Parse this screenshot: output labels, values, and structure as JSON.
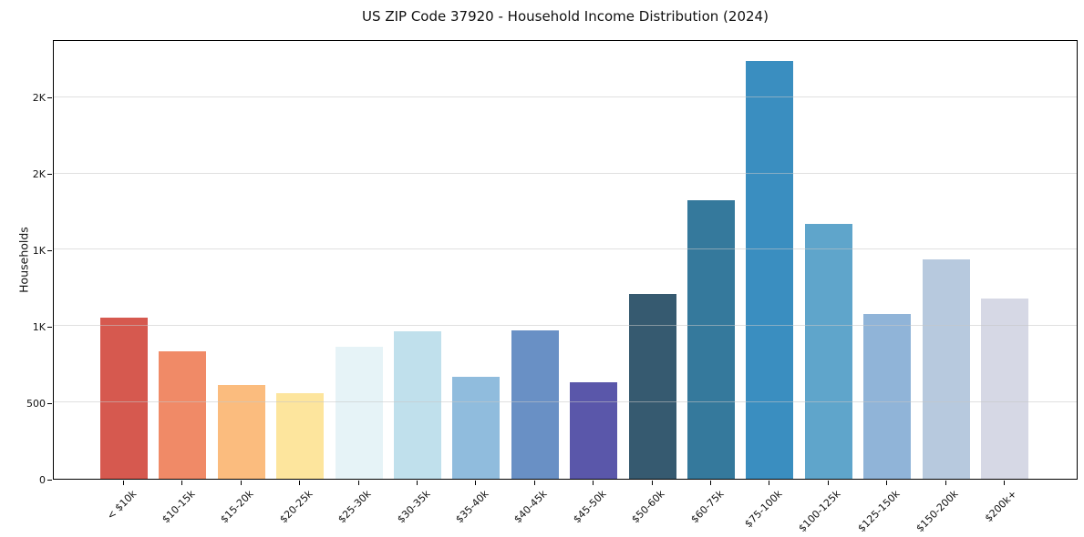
{
  "chart_data": {
    "type": "bar",
    "title": "US ZIP Code 37920 - Household Income Distribution (2024)",
    "xlabel": "",
    "ylabel": "Households",
    "categories": [
      "< $10k",
      "$10-15k",
      "$15-20k",
      "$20-25k",
      "$25-30k",
      "$30-35k",
      "$35-40k",
      "$40-45k",
      "$45-50k",
      "$50-60k",
      "$60-75k",
      "$75-100k",
      "$100-125k",
      "$125-150k",
      "$150-200k",
      "$200k+"
    ],
    "values": [
      1055,
      835,
      615,
      560,
      865,
      965,
      670,
      975,
      630,
      1210,
      1825,
      2740,
      1670,
      1080,
      1440,
      1180
    ],
    "bar_colors": [
      "#d6594f",
      "#f08a67",
      "#fbbc7e",
      "#fde59d",
      "#e6f3f7",
      "#c0e0ec",
      "#90bcdd",
      "#6990c5",
      "#5a57aa",
      "#365a70",
      "#35799c",
      "#3a8ec0",
      "#5fa5cb",
      "#90b4d8",
      "#b7c9de",
      "#d6d8e5"
    ],
    "ylim": [
      0,
      2880
    ],
    "yticks": [
      {
        "value": 0,
        "label": "0"
      },
      {
        "value": 500,
        "label": "500"
      },
      {
        "value": 1000,
        "label": "1K"
      },
      {
        "value": 1500,
        "label": "1K"
      },
      {
        "value": 2000,
        "label": "2K"
      },
      {
        "value": 2500,
        "label": "2K"
      }
    ],
    "grid": "horizontal",
    "legend": "none"
  },
  "colors": {
    "background": "#ffffff",
    "grid": "#e5e5e5",
    "spine": "#000000",
    "text": "#111111"
  }
}
